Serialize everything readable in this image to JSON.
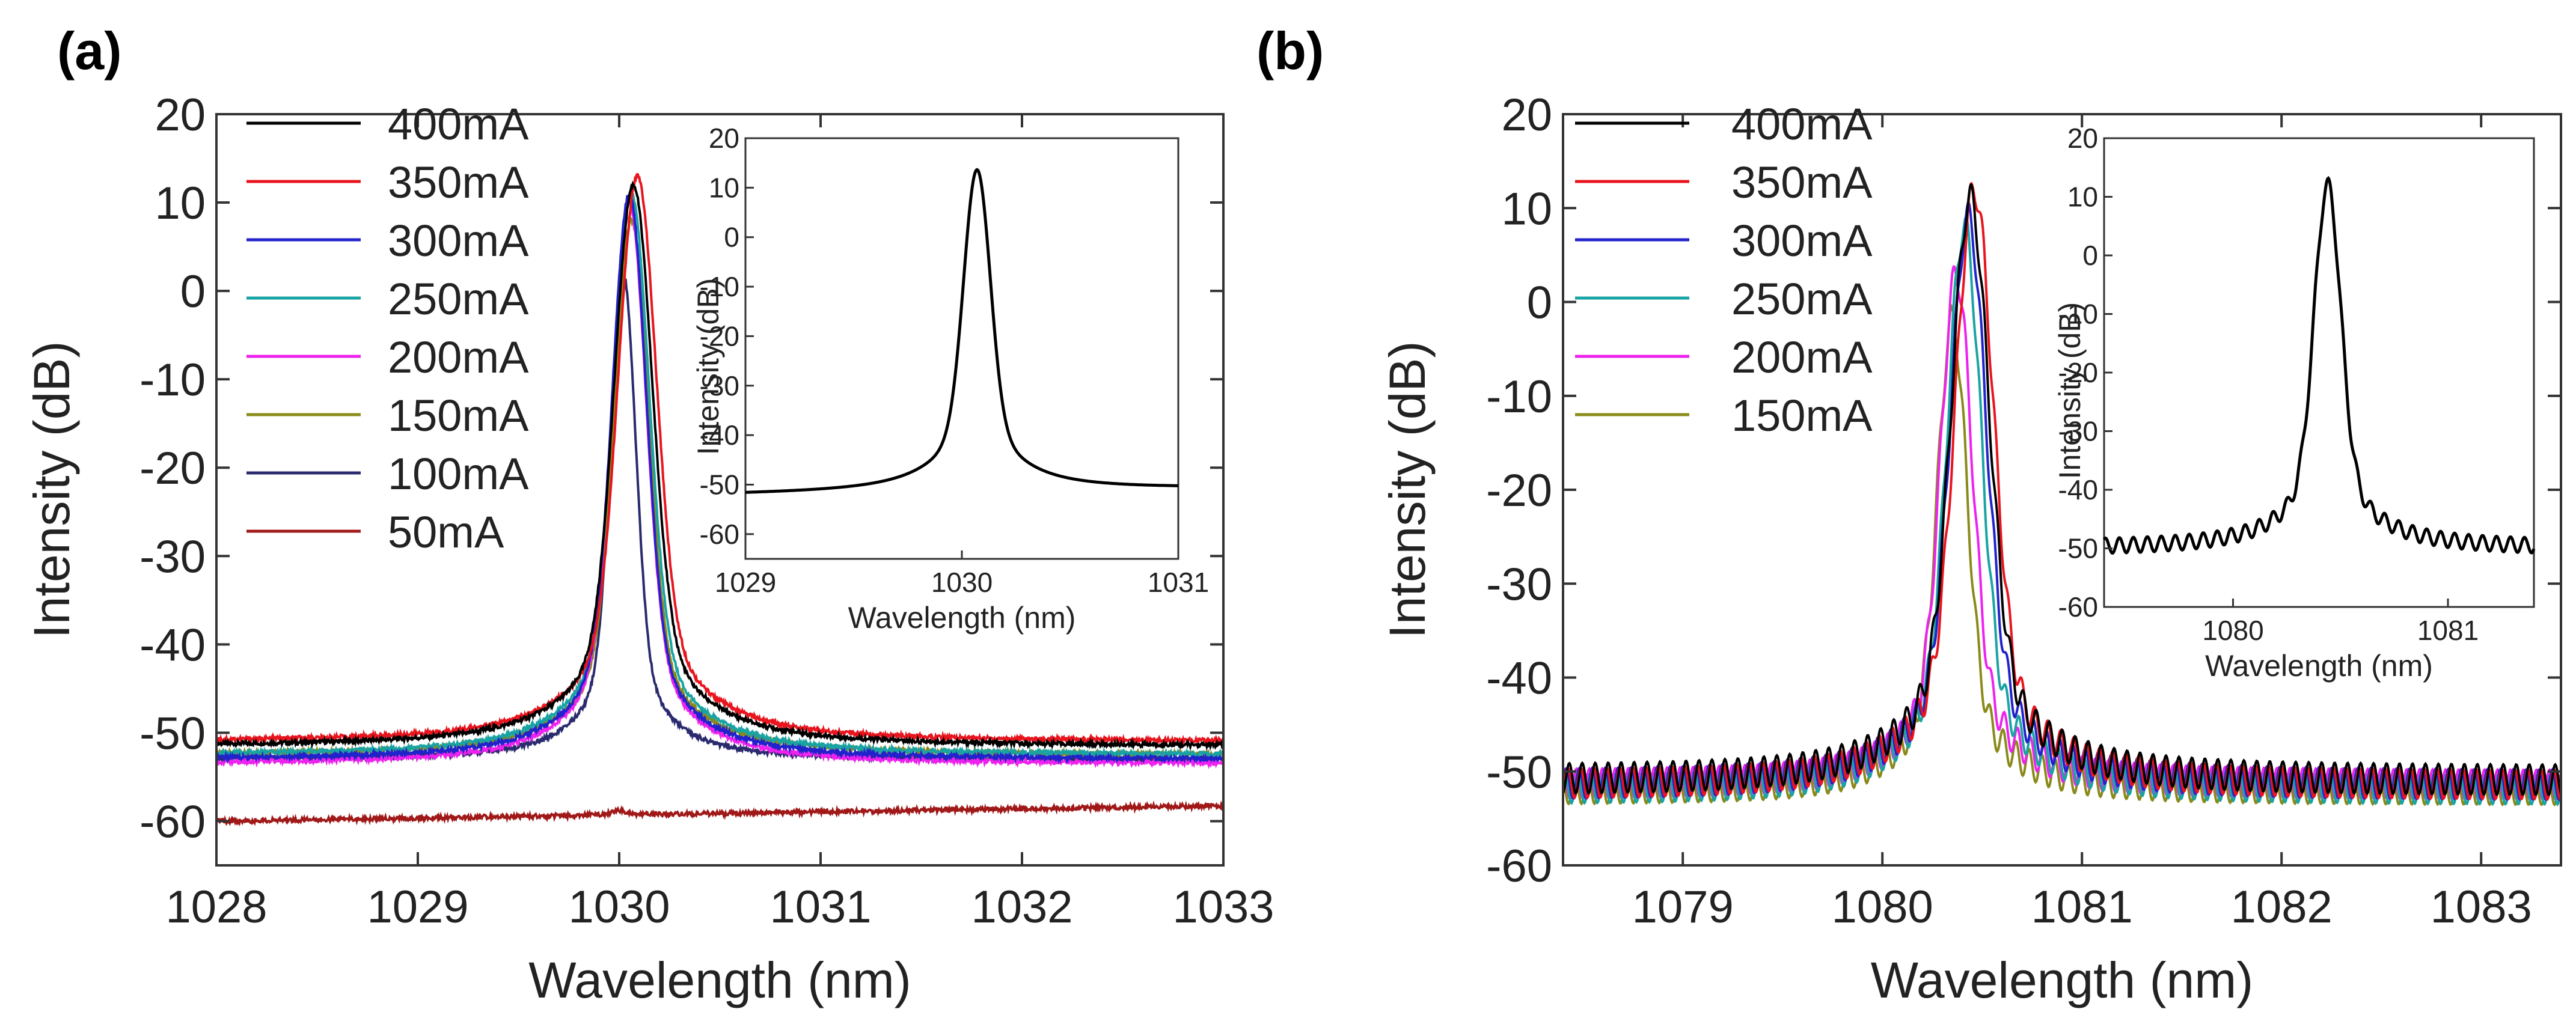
{
  "chart_data": [
    {
      "panel_label": "(a)",
      "type": "line",
      "xlabel": "Wavelength (nm)",
      "ylabel": "Intensity (dB)",
      "xlim": [
        1028,
        1033
      ],
      "ylim": [
        -65,
        20
      ],
      "xticks": [
        "1028",
        "1029",
        "1030",
        "1031",
        "1032",
        "1033"
      ],
      "yticks": [
        "20",
        "10",
        "0",
        "-10",
        "-20",
        "-30",
        "-40",
        "-50",
        "-60"
      ],
      "legend": "top-left",
      "series": [
        {
          "name": "400mA",
          "color": "#000000",
          "peak_x": 1030.07,
          "peak_y": 12,
          "baseline": -51.5,
          "width": 0.09
        },
        {
          "name": "350mA",
          "color": "#e8141e",
          "peak_x": 1030.09,
          "peak_y": 13,
          "baseline": -51,
          "width": 0.09
        },
        {
          "name": "300mA",
          "color": "#2222cc",
          "peak_x": 1030.05,
          "peak_y": 11,
          "baseline": -53,
          "width": 0.08
        },
        {
          "name": "250mA",
          "color": "#1aa3a3",
          "peak_x": 1030.06,
          "peak_y": 11,
          "baseline": -52.5,
          "width": 0.085
        },
        {
          "name": "200mA",
          "color": "#ee22ee",
          "peak_x": 1030.05,
          "peak_y": 10,
          "baseline": -53.5,
          "width": 0.08
        },
        {
          "name": "150mA",
          "color": "#8a8a1a",
          "peak_x": 1030.06,
          "peak_y": 8,
          "baseline": -52.5,
          "width": 0.08
        },
        {
          "name": "100mA",
          "color": "#2a2a6e",
          "peak_x": 1030.02,
          "peak_y": 2,
          "baseline": -53,
          "width": 0.06
        },
        {
          "name": "50mA",
          "color": "#a01818",
          "peak_x": 1030.0,
          "peak_y": -59.5,
          "baseline": -60,
          "width": 0.03
        }
      ],
      "inset": {
        "xlabel": "Wavelength (nm)",
        "ylabel": "Intensity (dB)",
        "xlim": [
          1029,
          1031
        ],
        "ylim": [
          -65,
          20
        ],
        "xticks": [
          "1029",
          "1030",
          "1031"
        ],
        "yticks": [
          "20",
          "10",
          "0",
          "-10",
          "-20",
          "-30",
          "-40",
          "-50",
          "-60"
        ],
        "series": {
          "color": "#000000",
          "peak_x": 1030.07,
          "peak_y": 13,
          "baseline": -52
        }
      }
    },
    {
      "panel_label": "(b)",
      "type": "line",
      "xlabel": "Wavelength (nm)",
      "ylabel": "Intensity (dB)",
      "xlim": [
        1078.4,
        1083.4
      ],
      "ylim": [
        -60,
        20
      ],
      "xticks": [
        "1079",
        "1080",
        "1081",
        "1082",
        "1083"
      ],
      "yticks": [
        "20",
        "10",
        "0",
        "-10",
        "-20",
        "-30",
        "-40",
        "-50",
        "-60"
      ],
      "legend": "top-left",
      "series": [
        {
          "name": "400mA",
          "color": "#000000",
          "peak_x": 1080.44,
          "peak_y": 11,
          "baseline": -51,
          "width": 0.09
        },
        {
          "name": "350mA",
          "color": "#e8141e",
          "peak_x": 1080.46,
          "peak_y": 12,
          "baseline": -51.5,
          "width": 0.09
        },
        {
          "name": "300mA",
          "color": "#2222cc",
          "peak_x": 1080.43,
          "peak_y": 9,
          "baseline": -51.5,
          "width": 0.085
        },
        {
          "name": "250mA",
          "color": "#1aa3a3",
          "peak_x": 1080.41,
          "peak_y": 8,
          "baseline": -52,
          "width": 0.08
        },
        {
          "name": "200mA",
          "color": "#ee22ee",
          "peak_x": 1080.37,
          "peak_y": 3,
          "baseline": -51.5,
          "width": 0.075
        },
        {
          "name": "150mA",
          "color": "#8a8a1a",
          "peak_x": 1080.35,
          "peak_y": -2,
          "baseline": -52,
          "width": 0.07
        }
      ],
      "inset": {
        "xlabel": "Wavelength (nm)",
        "ylabel": "Intensity (dB)",
        "xlim": [
          1079.4,
          1081.4
        ],
        "ylim": [
          -60,
          20
        ],
        "xticks": [
          "1080",
          "1081"
        ],
        "yticks": [
          "20",
          "10",
          "0",
          "-10",
          "-20",
          "-30",
          "-40",
          "-50",
          "-60"
        ],
        "series": {
          "color": "#000000",
          "peak_x": 1080.44,
          "peak_y": 12,
          "baseline": -50
        }
      }
    }
  ]
}
